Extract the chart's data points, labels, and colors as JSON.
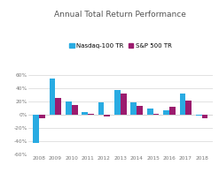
{
  "title": "Annual Total Return Performance",
  "years": [
    2008,
    2009,
    2010,
    2011,
    2012,
    2013,
    2014,
    2015,
    2016,
    2017,
    2018
  ],
  "nasdaq100": [
    -42,
    55,
    20,
    4,
    19,
    37,
    19,
    9,
    7,
    32,
    -1
  ],
  "sp500": [
    -5,
    26,
    15,
    2,
    -2,
    32,
    13,
    1,
    12,
    21,
    -5
  ],
  "nasdaq_color": "#29ABE2",
  "sp500_color": "#9B1B6E",
  "legend_nasdaq": "Nasdaq-100 TR",
  "legend_sp500": "S&P 500 TR",
  "ylim": [
    -60,
    70
  ],
  "yticks": [
    -60,
    -40,
    -20,
    0,
    20,
    40,
    60
  ],
  "ytick_labels": [
    "-60%",
    "-40%",
    "-20%",
    "0%",
    "20%",
    "40%",
    "60%"
  ],
  "background_color": "#ffffff",
  "grid_color": "#cccccc",
  "title_fontsize": 6.5,
  "axis_fontsize": 4.2,
  "legend_fontsize": 5.0
}
